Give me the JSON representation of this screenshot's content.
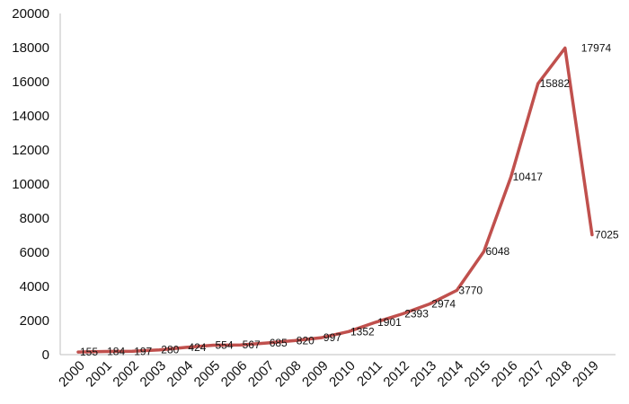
{
  "chart_data": {
    "type": "line",
    "x": [
      "2000",
      "2001",
      "2002",
      "2003",
      "2004",
      "2005",
      "2006",
      "2007",
      "2008",
      "2009",
      "2010",
      "2011",
      "2012",
      "2013",
      "2014",
      "2015",
      "2016",
      "2017",
      "2018",
      "2019"
    ],
    "series": [
      {
        "values": [
          155,
          184,
          197,
          280,
          424,
          554,
          567,
          685,
          820,
          997,
          1352,
          1901,
          2393,
          2974,
          3770,
          6048,
          10417,
          15882,
          17974,
          7025
        ],
        "labels": [
          "155",
          "184",
          "197",
          "280",
          "424",
          "554",
          "567",
          "685",
          "820",
          "997",
          "1352",
          "1901",
          "2393",
          "2974",
          "3770",
          "6048",
          "10417",
          "15882",
          "17974",
          "7025"
        ],
        "color": "#c0504d"
      }
    ],
    "yticks": [
      "0",
      "2000",
      "4000",
      "6000",
      "8000",
      "10000",
      "12000",
      "14000",
      "16000",
      "18000",
      "20000"
    ],
    "ylim": [
      0,
      20000
    ],
    "grid": false,
    "title": "",
    "xlabel": "",
    "ylabel": ""
  }
}
